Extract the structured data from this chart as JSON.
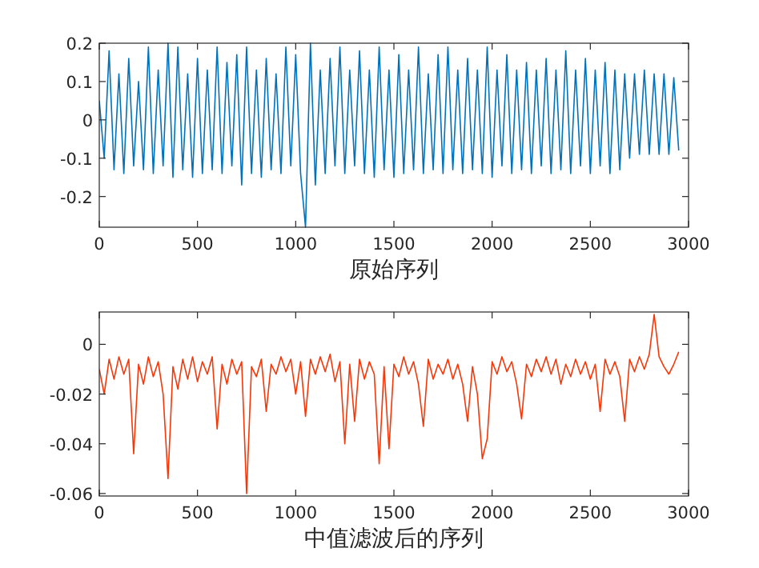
{
  "chart_data": [
    {
      "type": "line",
      "xlabel": "原始序列",
      "xlim": [
        0,
        3000
      ],
      "ylim": [
        -0.28,
        0.2
      ],
      "xticks": [
        0,
        500,
        1000,
        1500,
        2000,
        2500,
        3000
      ],
      "yticks": [
        -0.2,
        -0.1,
        0,
        0.1,
        0.2
      ],
      "x": [
        0,
        25,
        50,
        75,
        100,
        125,
        150,
        175,
        200,
        225,
        250,
        275,
        300,
        325,
        350,
        375,
        400,
        425,
        450,
        475,
        500,
        525,
        550,
        575,
        600,
        625,
        650,
        675,
        700,
        725,
        750,
        775,
        800,
        825,
        850,
        875,
        900,
        925,
        950,
        975,
        1000,
        1025,
        1050,
        1075,
        1100,
        1125,
        1150,
        1175,
        1200,
        1225,
        1250,
        1275,
        1300,
        1325,
        1350,
        1375,
        1400,
        1425,
        1450,
        1475,
        1500,
        1525,
        1550,
        1575,
        1600,
        1625,
        1650,
        1675,
        1700,
        1725,
        1750,
        1775,
        1800,
        1825,
        1850,
        1875,
        1900,
        1925,
        1950,
        1975,
        2000,
        2025,
        2050,
        2075,
        2100,
        2125,
        2150,
        2175,
        2200,
        2225,
        2250,
        2275,
        2300,
        2325,
        2350,
        2375,
        2400,
        2425,
        2450,
        2475,
        2500,
        2525,
        2550,
        2575,
        2600,
        2625,
        2650,
        2675,
        2700,
        2725,
        2750,
        2775,
        2800,
        2825,
        2850,
        2875,
        2900,
        2925,
        2950
      ],
      "series": [
        {
          "color": "#0072bd",
          "values": [
            0.05,
            -0.1,
            0.18,
            -0.13,
            0.12,
            -0.14,
            0.16,
            -0.12,
            0.1,
            -0.13,
            0.19,
            -0.14,
            0.13,
            -0.12,
            0.2,
            -0.15,
            0.19,
            -0.13,
            0.12,
            -0.15,
            0.16,
            -0.14,
            0.13,
            -0.13,
            0.19,
            -0.14,
            0.15,
            -0.12,
            0.17,
            -0.17,
            0.19,
            -0.14,
            0.13,
            -0.15,
            0.16,
            -0.13,
            0.12,
            -0.14,
            0.19,
            -0.12,
            0.17,
            -0.14,
            -0.28,
            0.2,
            -0.17,
            0.13,
            -0.14,
            0.16,
            -0.12,
            0.19,
            -0.14,
            0.13,
            -0.12,
            0.18,
            -0.14,
            0.13,
            -0.15,
            0.19,
            -0.13,
            0.13,
            -0.15,
            0.17,
            -0.14,
            0.13,
            -0.13,
            0.19,
            -0.14,
            0.12,
            -0.13,
            0.17,
            -0.14,
            0.19,
            -0.13,
            0.13,
            -0.14,
            0.16,
            -0.13,
            0.13,
            -0.14,
            0.19,
            -0.15,
            0.13,
            -0.12,
            0.17,
            -0.14,
            0.13,
            -0.13,
            0.15,
            -0.14,
            0.13,
            -0.12,
            0.16,
            -0.14,
            0.13,
            -0.13,
            0.18,
            -0.14,
            0.13,
            -0.12,
            0.16,
            -0.14,
            0.13,
            -0.12,
            0.15,
            -0.14,
            0.13,
            -0.13,
            0.12,
            -0.1,
            0.12,
            -0.09,
            0.13,
            -0.09,
            0.12,
            -0.09,
            0.12,
            -0.09,
            0.11,
            -0.08
          ]
        }
      ]
    },
    {
      "type": "line",
      "xlabel": "中值滤波后的序列",
      "xlim": [
        0,
        3000
      ],
      "ylim": [
        -0.061,
        0.013
      ],
      "xticks": [
        0,
        500,
        1000,
        1500,
        2000,
        2500,
        3000
      ],
      "yticks": [
        -0.06,
        -0.04,
        -0.02,
        0
      ],
      "x": [
        0,
        25,
        50,
        75,
        100,
        125,
        150,
        175,
        200,
        225,
        250,
        275,
        300,
        325,
        350,
        375,
        400,
        425,
        450,
        475,
        500,
        525,
        550,
        575,
        600,
        625,
        650,
        675,
        700,
        725,
        750,
        775,
        800,
        825,
        850,
        875,
        900,
        925,
        950,
        975,
        1000,
        1025,
        1050,
        1075,
        1100,
        1125,
        1150,
        1175,
        1200,
        1225,
        1250,
        1275,
        1300,
        1325,
        1350,
        1375,
        1400,
        1425,
        1450,
        1475,
        1500,
        1525,
        1550,
        1575,
        1600,
        1625,
        1650,
        1675,
        1700,
        1725,
        1750,
        1775,
        1800,
        1825,
        1850,
        1875,
        1900,
        1925,
        1950,
        1975,
        2000,
        2025,
        2050,
        2075,
        2100,
        2125,
        2150,
        2175,
        2200,
        2225,
        2250,
        2275,
        2300,
        2325,
        2350,
        2375,
        2400,
        2425,
        2450,
        2475,
        2500,
        2525,
        2550,
        2575,
        2600,
        2625,
        2650,
        2675,
        2700,
        2725,
        2750,
        2775,
        2800,
        2825,
        2850,
        2875,
        2900,
        2925,
        2950
      ],
      "series": [
        {
          "color": "#f5380a",
          "values": [
            -0.01,
            -0.02,
            -0.006,
            -0.014,
            -0.005,
            -0.012,
            -0.006,
            -0.044,
            -0.008,
            -0.016,
            -0.005,
            -0.013,
            -0.007,
            -0.02,
            -0.054,
            -0.009,
            -0.018,
            -0.006,
            -0.014,
            -0.005,
            -0.015,
            -0.007,
            -0.012,
            -0.005,
            -0.034,
            -0.008,
            -0.016,
            -0.006,
            -0.012,
            -0.007,
            -0.06,
            -0.009,
            -0.013,
            -0.006,
            -0.027,
            -0.008,
            -0.012,
            -0.005,
            -0.011,
            -0.006,
            -0.02,
            -0.007,
            -0.029,
            -0.006,
            -0.012,
            -0.005,
            -0.011,
            -0.004,
            -0.015,
            -0.007,
            -0.04,
            -0.008,
            -0.031,
            -0.006,
            -0.014,
            -0.007,
            -0.012,
            -0.048,
            -0.009,
            -0.042,
            -0.008,
            -0.013,
            -0.005,
            -0.012,
            -0.007,
            -0.016,
            -0.033,
            -0.006,
            -0.014,
            -0.008,
            -0.012,
            -0.006,
            -0.014,
            -0.008,
            -0.016,
            -0.031,
            -0.009,
            -0.02,
            -0.046,
            -0.038,
            -0.007,
            -0.012,
            -0.005,
            -0.011,
            -0.007,
            -0.016,
            -0.03,
            -0.008,
            -0.013,
            -0.006,
            -0.011,
            -0.005,
            -0.012,
            -0.006,
            -0.016,
            -0.008,
            -0.013,
            -0.006,
            -0.012,
            -0.007,
            -0.014,
            -0.008,
            -0.027,
            -0.006,
            -0.012,
            -0.007,
            -0.013,
            -0.031,
            -0.006,
            -0.011,
            -0.005,
            -0.01,
            -0.004,
            0.012,
            -0.005,
            -0.009,
            -0.012,
            -0.008,
            -0.003
          ]
        }
      ]
    }
  ]
}
